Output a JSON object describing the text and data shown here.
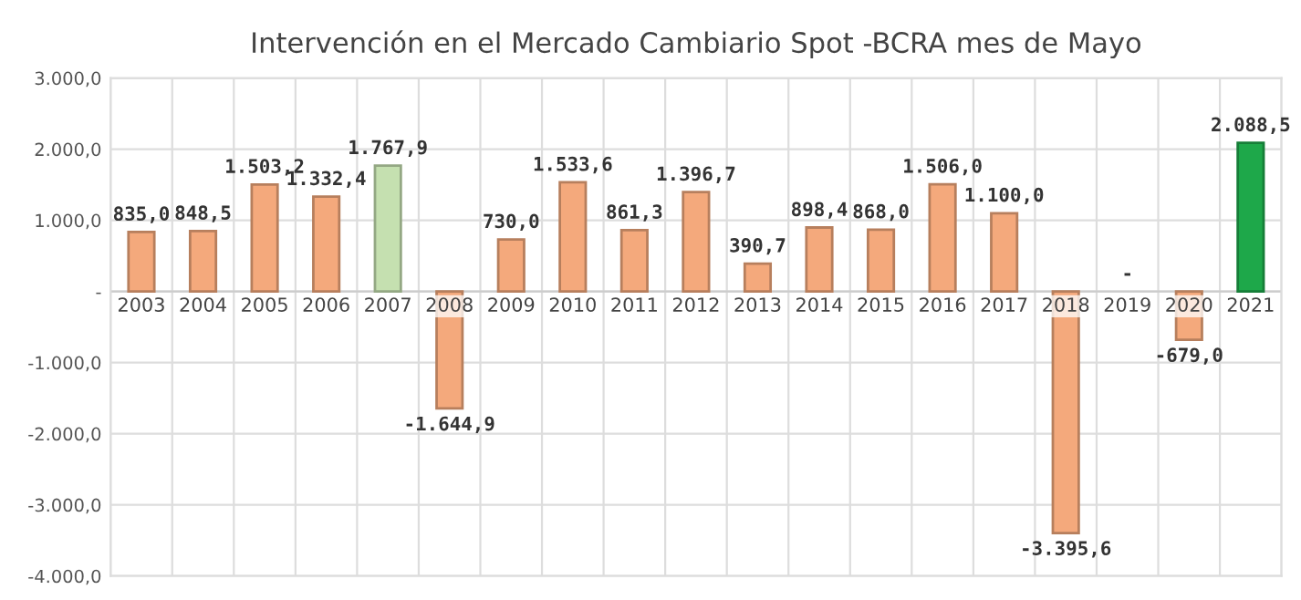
{
  "chart_data": {
    "type": "bar",
    "title": "Intervención en el Mercado Cambiario Spot -BCRA mes de Mayo",
    "categories": [
      "2003",
      "2004",
      "2005",
      "2006",
      "2007",
      "2008",
      "2009",
      "2010",
      "2011",
      "2012",
      "2013",
      "2014",
      "2015",
      "2016",
      "2017",
      "2018",
      "2019",
      "2020",
      "2021"
    ],
    "values": [
      835.0,
      848.5,
      1503.2,
      1332.4,
      1767.9,
      -1644.9,
      730.0,
      1533.6,
      861.3,
      1396.7,
      390.7,
      898.4,
      868.0,
      1506.0,
      1100.0,
      -3395.6,
      0,
      -679.0,
      2088.5
    ],
    "value_labels": [
      "835,0",
      "848,5",
      "1.503,2",
      "1.332,4",
      "1.767,9",
      "-1.644,9",
      "730,0",
      "1.533,6",
      "861,3",
      "1.396,7",
      "390,7",
      "898,4",
      "868,0",
      "1.506,0",
      "1.100,0",
      "-3.395,6",
      "-",
      "-679,0",
      "2.088,5"
    ],
    "colors": [
      "#f4a97c",
      "#f4a97c",
      "#f4a97c",
      "#f4a97c",
      "#c5e0b0",
      "#f4a97c",
      "#f4a97c",
      "#f4a97c",
      "#f4a97c",
      "#f4a97c",
      "#f4a97c",
      "#f4a97c",
      "#f4a97c",
      "#f4a97c",
      "#f4a97c",
      "#f4a97c",
      "#f4a97c",
      "#f4a97c",
      "#1ea84a"
    ],
    "ylim": [
      -4000,
      3000
    ],
    "yticks": [
      {
        "value": -4000,
        "label": "-4.000,0"
      },
      {
        "value": -3000,
        "label": "-3.000,0"
      },
      {
        "value": -2000,
        "label": "-2.000,0"
      },
      {
        "value": -1000,
        "label": "-1.000,0"
      },
      {
        "value": 0,
        "label": "-"
      },
      {
        "value": 1000,
        "label": "1.000,0"
      },
      {
        "value": 2000,
        "label": "2.000,0"
      },
      {
        "value": 3000,
        "label": "3.000,0"
      }
    ],
    "grid": true
  }
}
